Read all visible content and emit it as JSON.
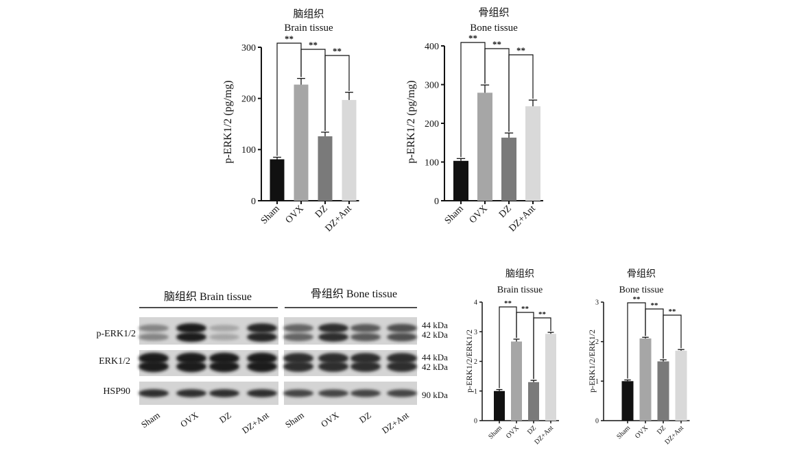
{
  "colors": {
    "Sham": "#111111",
    "OVX": "#a6a6a6",
    "DZ": "#7a7a7a",
    "DZ+Ant": "#d9d9d9",
    "axis": "#111111"
  },
  "chart_data": [
    {
      "type": "bar",
      "title": "脑组织",
      "subtitle": "Brain tissue",
      "ylabel": "p-ERK1/2 (pg/mg)",
      "categories": [
        "Sham",
        "OVX",
        "DZ",
        "DZ+Ant"
      ],
      "values": [
        81,
        227,
        126,
        197
      ],
      "errors": [
        4,
        12,
        8,
        15
      ],
      "ylim": [
        0,
        300
      ],
      "yticks": [
        0,
        100,
        200,
        300
      ],
      "significance": [
        {
          "from": 0,
          "to": 1,
          "label": "**"
        },
        {
          "from": 1,
          "to": 2,
          "label": "**"
        },
        {
          "from": 2,
          "to": 3,
          "label": "**"
        }
      ],
      "grid": false
    },
    {
      "type": "bar",
      "title": "骨组织",
      "subtitle": "Bone tissue",
      "ylabel": "p-ERK1/2 (pg/mg)",
      "categories": [
        "Sham",
        "OVX",
        "DZ",
        "DZ+Ant"
      ],
      "values": [
        103,
        279,
        163,
        244
      ],
      "errors": [
        6,
        20,
        12,
        16
      ],
      "ylim": [
        0,
        400
      ],
      "yticks": [
        0,
        100,
        200,
        300,
        400
      ],
      "significance": [
        {
          "from": 0,
          "to": 1,
          "label": "**"
        },
        {
          "from": 1,
          "to": 2,
          "label": "**"
        },
        {
          "from": 2,
          "to": 3,
          "label": "**"
        }
      ],
      "grid": false
    },
    {
      "type": "bar",
      "title": "脑组织",
      "subtitle": "Brain tissue",
      "ylabel": "p-ERK1/2/ERK1/2",
      "categories": [
        "Sham",
        "OVX",
        "DZ",
        "DZ+Ant"
      ],
      "values": [
        1.0,
        2.67,
        1.3,
        2.93
      ],
      "errors": [
        0.05,
        0.08,
        0.06,
        0.05
      ],
      "ylim": [
        0,
        4
      ],
      "yticks": [
        0,
        1,
        2,
        3,
        4
      ],
      "significance": [
        {
          "from": 0,
          "to": 1,
          "label": "**"
        },
        {
          "from": 1,
          "to": 2,
          "label": "**"
        },
        {
          "from": 2,
          "to": 3,
          "label": "**"
        }
      ],
      "grid": false
    },
    {
      "type": "bar",
      "title": "骨组织",
      "subtitle": "Bone tissue",
      "ylabel": "p-ERK1/2/ERK1/2",
      "categories": [
        "Sham",
        "OVX",
        "DZ",
        "DZ+Ant"
      ],
      "values": [
        1.0,
        2.08,
        1.5,
        1.77
      ],
      "errors": [
        0.03,
        0.03,
        0.04,
        0.03
      ],
      "ylim": [
        0,
        3
      ],
      "yticks": [
        0,
        1,
        2,
        3
      ],
      "significance": [
        {
          "from": 0,
          "to": 1,
          "label": "**"
        },
        {
          "from": 1,
          "to": 2,
          "label": "**"
        },
        {
          "from": 2,
          "to": 3,
          "label": "**"
        }
      ],
      "grid": false
    }
  ],
  "western_blot": {
    "header_brain": "脑组织 Brain tissue",
    "header_bone": "骨组织 Bone tissue",
    "rows": [
      {
        "label": "p-ERK1/2",
        "kda": [
          "44 kDa",
          "42 kDa"
        ]
      },
      {
        "label": "ERK1/2",
        "kda": [
          "44 kDa",
          "42 kDa"
        ]
      },
      {
        "label": "HSP90",
        "kda": [
          "90 kDa"
        ]
      }
    ],
    "lanes": [
      "Sham",
      "OVX",
      "DZ",
      "DZ+Ant"
    ],
    "band_intensity": {
      "brain": [
        [
          0.45,
          0.95,
          0.3,
          0.9
        ],
        [
          0.95,
          0.95,
          0.95,
          0.95
        ],
        [
          0.85,
          0.85,
          0.85,
          0.85
        ]
      ],
      "bone": [
        [
          0.6,
          0.85,
          0.65,
          0.7
        ],
        [
          0.85,
          0.85,
          0.85,
          0.85
        ],
        [
          0.75,
          0.75,
          0.75,
          0.75
        ]
      ]
    }
  }
}
